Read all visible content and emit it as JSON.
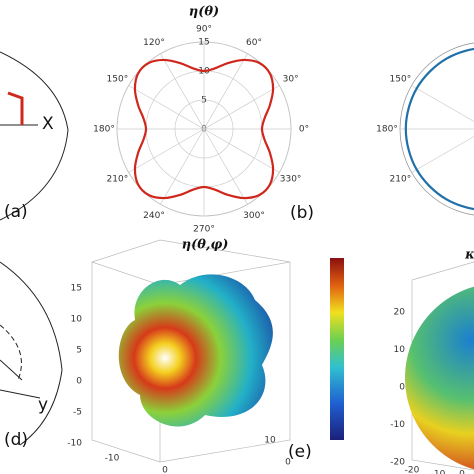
{
  "chart_data": [
    {
      "type": "polar",
      "title": "η(θ)",
      "color": "#d0271d",
      "theta": [
        0,
        10,
        20,
        30,
        40,
        50,
        60,
        70,
        80,
        90,
        100,
        110,
        120,
        130,
        140,
        150,
        160,
        170,
        180,
        190,
        200,
        210,
        220,
        230,
        240,
        250,
        260,
        270,
        280,
        290,
        300,
        310,
        320,
        330,
        340,
        350
      ],
      "r": [
        10,
        10.6,
        12.1,
        13.75,
        14.85,
        14.85,
        13.75,
        12.1,
        10.6,
        10,
        10.6,
        12.1,
        13.75,
        14.85,
        14.85,
        13.75,
        12.1,
        10.6,
        10,
        10.6,
        12.1,
        13.75,
        14.85,
        14.85,
        13.75,
        12.1,
        10.6,
        10,
        10.6,
        12.1,
        13.75,
        14.85,
        14.85,
        13.75,
        12.1,
        10.6
      ],
      "rlim": [
        0,
        15
      ],
      "rticks": [
        0,
        5,
        10,
        15
      ],
      "thetaticks": [
        {
          "value": 0,
          "label": "0°"
        },
        {
          "value": 30,
          "label": "30°"
        },
        {
          "value": 60,
          "label": "60°"
        },
        {
          "value": 90,
          "label": "90°"
        },
        {
          "value": 120,
          "label": "120°"
        },
        {
          "value": 150,
          "label": "150°"
        },
        {
          "value": 180,
          "label": "180°"
        },
        {
          "value": 210,
          "label": "210°"
        },
        {
          "value": 240,
          "label": "240°"
        },
        {
          "value": 270,
          "label": "270°"
        },
        {
          "value": 300,
          "label": "300°"
        },
        {
          "value": 330,
          "label": "330°"
        }
      ],
      "panel": "(b)"
    },
    {
      "type": "polar",
      "color": "#1f6fa8",
      "theta": [
        0,
        30,
        60,
        90,
        120,
        150,
        180,
        210,
        240,
        270,
        300,
        330
      ],
      "r": [
        14,
        14,
        14,
        14,
        14,
        14,
        14,
        14,
        14,
        14,
        14,
        14
      ],
      "rlim": [
        0,
        15
      ],
      "thetaticks": [
        {
          "value": 150,
          "label": "150°"
        },
        {
          "value": 180,
          "label": "180°"
        },
        {
          "value": 210,
          "label": "210°"
        }
      ]
    },
    {
      "type": "surface",
      "title": "η(θ,φ)",
      "zticks": [
        15,
        10,
        5,
        0,
        -5,
        -10
      ],
      "xticks": [
        -10,
        0
      ],
      "yticks": [
        10,
        0
      ],
      "panel": "(e)"
    },
    {
      "type": "surface",
      "title": "κ",
      "zticks": [
        20,
        10,
        0,
        -10,
        -20
      ],
      "xticks": [
        -20,
        -10,
        0
      ]
    }
  ],
  "sketches": {
    "a": {
      "label": "(a)",
      "axis": "X"
    },
    "d": {
      "label": "(d)",
      "axis": "y"
    }
  }
}
